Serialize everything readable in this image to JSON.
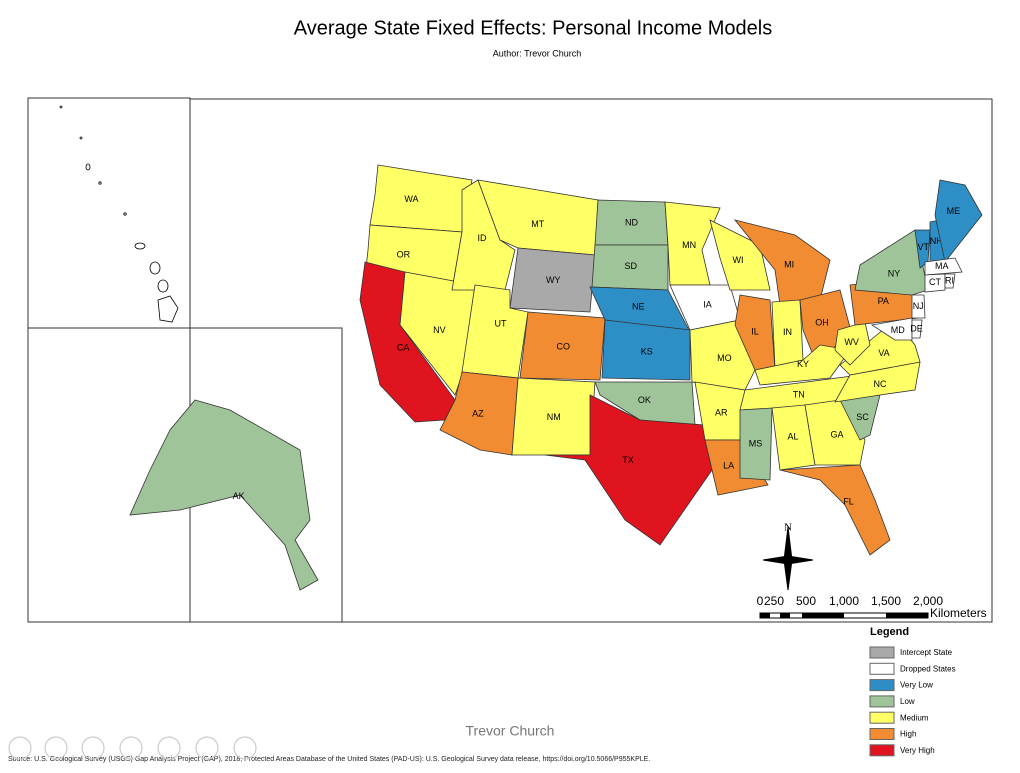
{
  "title": "Average State Fixed Effects: Personal Income Models",
  "author": "Author: Trevor Church",
  "states": [
    {
      "label": "WA",
      "color": "#ffff66"
    },
    {
      "label": "OR",
      "color": "#ffff66"
    },
    {
      "label": "CA",
      "color": "#e0141e"
    },
    {
      "label": "NV",
      "color": "#ffff66"
    },
    {
      "label": "ID",
      "color": "#ffff66"
    },
    {
      "label": "MT",
      "color": "#ffff66"
    },
    {
      "label": "WY",
      "color": "#a9a9a9"
    },
    {
      "label": "UT",
      "color": "#ffff66"
    },
    {
      "label": "CO",
      "color": "#f28c32"
    },
    {
      "label": "AZ",
      "color": "#f28c32"
    },
    {
      "label": "NM",
      "color": "#ffff66"
    },
    {
      "label": "ND",
      "color": "#a0c49a"
    },
    {
      "label": "SD",
      "color": "#a0c49a"
    },
    {
      "label": "NE",
      "color": "#2e8ec6"
    },
    {
      "label": "KS",
      "color": "#2e8ec6"
    },
    {
      "label": "OK",
      "color": "#a0c49a"
    },
    {
      "label": "TX",
      "color": "#e0141e"
    },
    {
      "label": "MN",
      "color": "#ffff66"
    },
    {
      "label": "IA",
      "color": "#ffffff"
    },
    {
      "label": "MO",
      "color": "#ffff66"
    },
    {
      "label": "AR",
      "color": "#ffff66"
    },
    {
      "label": "LA",
      "color": "#f28c32"
    },
    {
      "label": "WI",
      "color": "#ffff66"
    },
    {
      "label": "IL",
      "color": "#f28c32"
    },
    {
      "label": "MI",
      "color": "#f28c32"
    },
    {
      "label": "IN",
      "color": "#ffff66"
    },
    {
      "label": "OH",
      "color": "#f28c32"
    },
    {
      "label": "KY",
      "color": "#ffff66"
    },
    {
      "label": "TN",
      "color": "#ffff66"
    },
    {
      "label": "MS",
      "color": "#a0c49a"
    },
    {
      "label": "AL",
      "color": "#ffff66"
    },
    {
      "label": "GA",
      "color": "#ffff66"
    },
    {
      "label": "FL",
      "color": "#f28c32"
    },
    {
      "label": "SC",
      "color": "#a0c49a"
    },
    {
      "label": "NC",
      "color": "#ffff66"
    },
    {
      "label": "VA",
      "color": "#ffff66"
    },
    {
      "label": "WV",
      "color": "#ffff66"
    },
    {
      "label": "PA",
      "color": "#f28c32"
    },
    {
      "label": "MD",
      "color": "#ffffff"
    },
    {
      "label": "DE",
      "color": "#ffffff"
    },
    {
      "label": "NJ",
      "color": "#ffffff"
    },
    {
      "label": "NY",
      "color": "#a0c49a"
    },
    {
      "label": "VT",
      "color": "#2e8ec6"
    },
    {
      "label": "NH",
      "color": "#2e8ec6"
    },
    {
      "label": "ME",
      "color": "#2e8ec6"
    },
    {
      "label": "MA",
      "color": "#ffffff"
    },
    {
      "label": "CT",
      "color": "#ffffff"
    },
    {
      "label": "RI",
      "color": "#ffffff"
    },
    {
      "label": "AK",
      "color": "#a0c49a"
    }
  ],
  "north": "N",
  "scale": {
    "labels": [
      "0",
      "250",
      "500",
      "1,000",
      "1,500",
      "2,000"
    ],
    "unit": "Kilometers"
  },
  "legend": {
    "title": "Legend",
    "items": [
      {
        "label": "Intercept State",
        "color": "#a9a9a9"
      },
      {
        "label": "Dropped States",
        "color": "#ffffff"
      },
      {
        "label": "Very Low",
        "color": "#2e8ec6"
      },
      {
        "label": "Low",
        "color": "#a0c49a"
      },
      {
        "label": "Medium",
        "color": "#ffff66"
      },
      {
        "label": "High",
        "color": "#f28c32"
      },
      {
        "label": "Very High",
        "color": "#e0141e"
      }
    ]
  },
  "footer": "Trevor Church",
  "source": "Source: U.S. Geological Survey (USGS) Gap Analysis Project (GAP), 2018, Protected Areas Database of the United States (PAD-US): U.S. Geological Survey data release, https://doi.org/10.5066/P955KPLE."
}
